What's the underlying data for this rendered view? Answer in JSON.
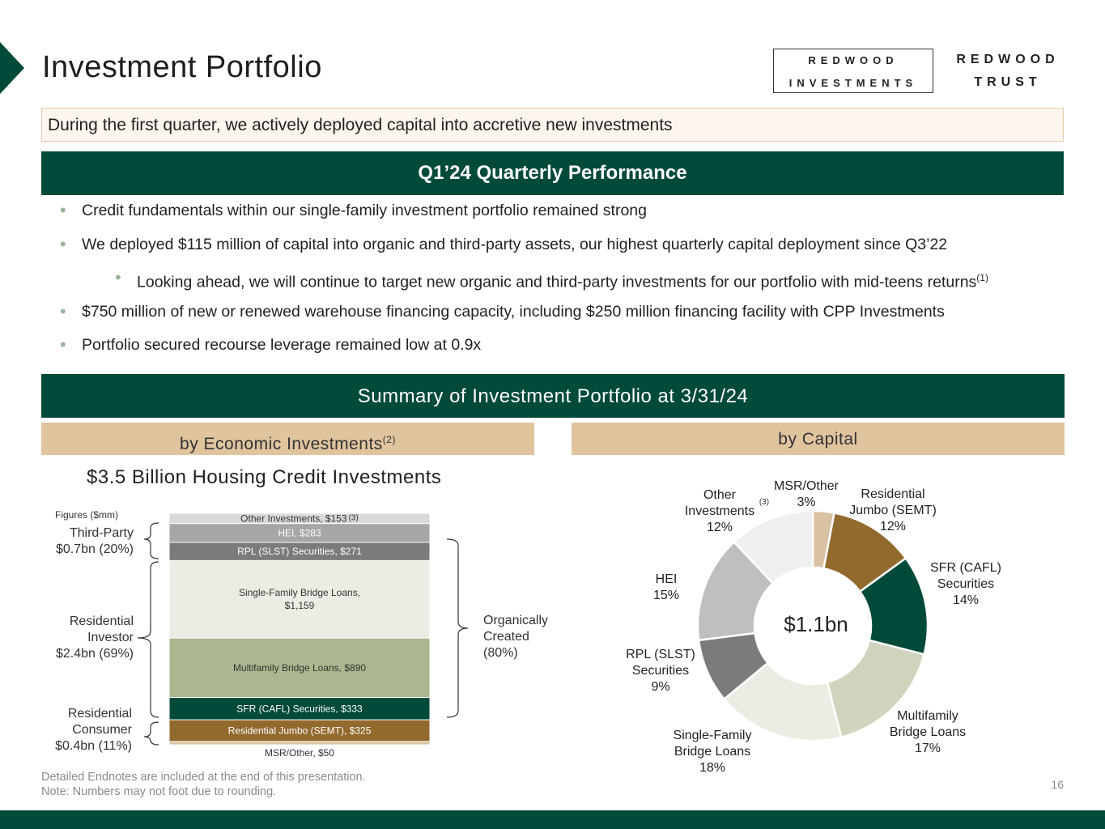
{
  "header": {
    "title": "Investment Portfolio",
    "logo_box": {
      "line1": "REDWOOD",
      "line2": "INVESTMENTS"
    },
    "logo_plain": {
      "line1": "REDWOOD",
      "line2": "TRUST"
    }
  },
  "callout": "During the first quarter, we actively deployed capital into accretive new investments",
  "performance": {
    "heading": "Q1’24 Quarterly Performance",
    "bullets": [
      {
        "text": "Credit fundamentals within our single-family investment portfolio remained strong",
        "sup": ""
      },
      {
        "text": "We deployed $115 million of capital into organic and third-party assets, our highest quarterly capital deployment since Q3’22",
        "sup": ""
      },
      {
        "text": "Looking ahead, we will continue to target new organic and third-party investments for our portfolio with mid-teens returns",
        "sup": "(1)"
      },
      {
        "text": "$750 million of new or renewed warehouse financing capacity, including $250 million financing facility with CPP Investments",
        "sup": ""
      },
      {
        "text": "Portfolio secured recourse leverage remained low at 0.9x",
        "sup": ""
      }
    ]
  },
  "summary": {
    "heading": "Summary of Investment Portfolio at 3/31/24",
    "left_tab": "by Economic Investments",
    "left_tab_sup": "(2)",
    "right_tab": "by Capital"
  },
  "chart_data": [
    {
      "type": "bar",
      "subtype": "stacked-single-column",
      "title": "$3.5 Billion Housing Credit Investments",
      "units_label": "Figures ($mm)",
      "segments": [
        {
          "label": "MSR/Other, $50",
          "name": "MSR/Other",
          "value": 50,
          "color": "#d9c2a2"
        },
        {
          "label": "Residential Jumbo (SEMT), $325",
          "name": "Residential Jumbo (SEMT)",
          "value": 325,
          "color": "#936a2e"
        },
        {
          "label": "SFR (CAFL) Securities, $333",
          "name": "SFR (CAFL) Securities",
          "value": 333,
          "color": "#004a3a"
        },
        {
          "label": "Multifamily Bridge Loans, $890",
          "name": "Multifamily Bridge Loans",
          "value": 890,
          "color": "#abb78e"
        },
        {
          "label": "Single-Family Bridge Loans, $1,159",
          "name": "Single-Family Bridge Loans",
          "value": 1159,
          "color": "#ecece4"
        },
        {
          "label": "RPL (SLST) Securities, $271",
          "name": "RPL (SLST) Securities",
          "value": 271,
          "color": "#7b7b7b"
        },
        {
          "label": "HEI, $283",
          "name": "HEI",
          "value": 283,
          "color": "#a6a6a6"
        },
        {
          "label": "Other Investments, $153",
          "name": "Other Investments",
          "value": 153,
          "color": "#d9d9d9",
          "sup": "(3)"
        }
      ],
      "group_labels_left": [
        {
          "line1": "Third-Party",
          "line2": "$0.7bn (20%)"
        },
        {
          "line1": "Residential",
          "line2": "Investor",
          "line3": "$2.4bn (69%)"
        },
        {
          "line1": "Residential",
          "line2": "Consumer",
          "line3": "$0.4bn (11%)"
        }
      ],
      "group_label_right": {
        "line1": "Organically",
        "line2": "Created",
        "line3": "(80%)"
      }
    },
    {
      "type": "pie",
      "subtype": "donut",
      "center_label": "$1.1bn",
      "slices": [
        {
          "name": "MSR/Other",
          "value": 3,
          "label": "3%",
          "color": "#d9c2a2"
        },
        {
          "name": "Residential Jumbo (SEMT)",
          "value": 12,
          "label": "12%",
          "color": "#936a2e"
        },
        {
          "name": "SFR (CAFL) Securities",
          "value": 14,
          "label": "14%",
          "color": "#004a3a"
        },
        {
          "name": "Multifamily Bridge Loans",
          "value": 17,
          "label": "17%",
          "color": "#cfd5bd"
        },
        {
          "name": "Single-Family Bridge Loans",
          "value": 18,
          "label": "18%",
          "color": "#ecece4"
        },
        {
          "name": "RPL (SLST) Securities",
          "value": 9,
          "label": "9%",
          "color": "#7b7b7b"
        },
        {
          "name": "HEI",
          "value": 15,
          "label": "15%",
          "color": "#bfbfbf"
        },
        {
          "name": "Other Investments",
          "value": 12,
          "label": "12%",
          "color": "#efefef"
        }
      ],
      "callouts": {
        "msr": {
          "l1": "MSR/Other",
          "l2": "3%"
        },
        "jumbo": {
          "l1": "Residential",
          "l2": "Jumbo (SEMT)",
          "l3": "12%"
        },
        "sfr": {
          "l1": "SFR (CAFL)",
          "l2": "Securities",
          "l3": "14%"
        },
        "multi": {
          "l1": "Multifamily",
          "l2": "Bridge Loans",
          "l3": "17%"
        },
        "sfb": {
          "l1": "Single-Family",
          "l2": "Bridge Loans",
          "l3": "18%"
        },
        "rpl": {
          "l1": "RPL (SLST)",
          "l2": "Securities",
          "l3": "9%"
        },
        "hei": {
          "l1": "HEI",
          "l2": "15%"
        },
        "other": {
          "l1": "Other",
          "l2": "Investments",
          "l3": "12%",
          "sup": "(3)"
        }
      }
    }
  ],
  "footnotes": {
    "line1": "Detailed Endnotes are included at the end of this presentation.",
    "line2": "Note: Numbers may not foot due to rounding."
  },
  "page_number": "16"
}
